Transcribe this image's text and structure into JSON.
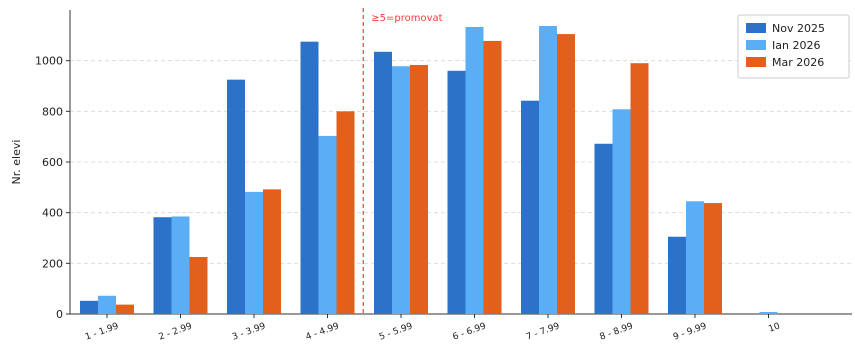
{
  "chart_data": {
    "type": "bar",
    "title": "",
    "xlabel": "",
    "ylabel": "Nr. elevi",
    "ylim": [
      0,
      1200
    ],
    "yticks": [
      0,
      200,
      400,
      600,
      800,
      1000
    ],
    "grid": true,
    "legend_position": "top-right",
    "categories": [
      "1 - 1.99",
      "2 - 2.99",
      "3 - 3.99",
      "4 - 4.99",
      "5 - 5.99",
      "6 - 6.99",
      "7 - 7.99",
      "8 - 8.99",
      "9 - 9.99",
      "10"
    ],
    "series": [
      {
        "name": "Nov 2025",
        "color": "#2b72c8",
        "values": [
          52,
          382,
          925,
          1075,
          1035,
          960,
          842,
          672,
          305,
          0
        ]
      },
      {
        "name": "Ian 2026",
        "color": "#5aaef5",
        "values": [
          72,
          385,
          482,
          703,
          978,
          1133,
          1137,
          808,
          445,
          8
        ]
      },
      {
        "name": "Mar 2026",
        "color": "#e25f1c",
        "values": [
          37,
          225,
          492,
          800,
          983,
          1078,
          1105,
          990,
          438,
          0
        ]
      }
    ],
    "annotation": {
      "text": "≥5=promovat",
      "color": "#ff3b3b"
    }
  }
}
